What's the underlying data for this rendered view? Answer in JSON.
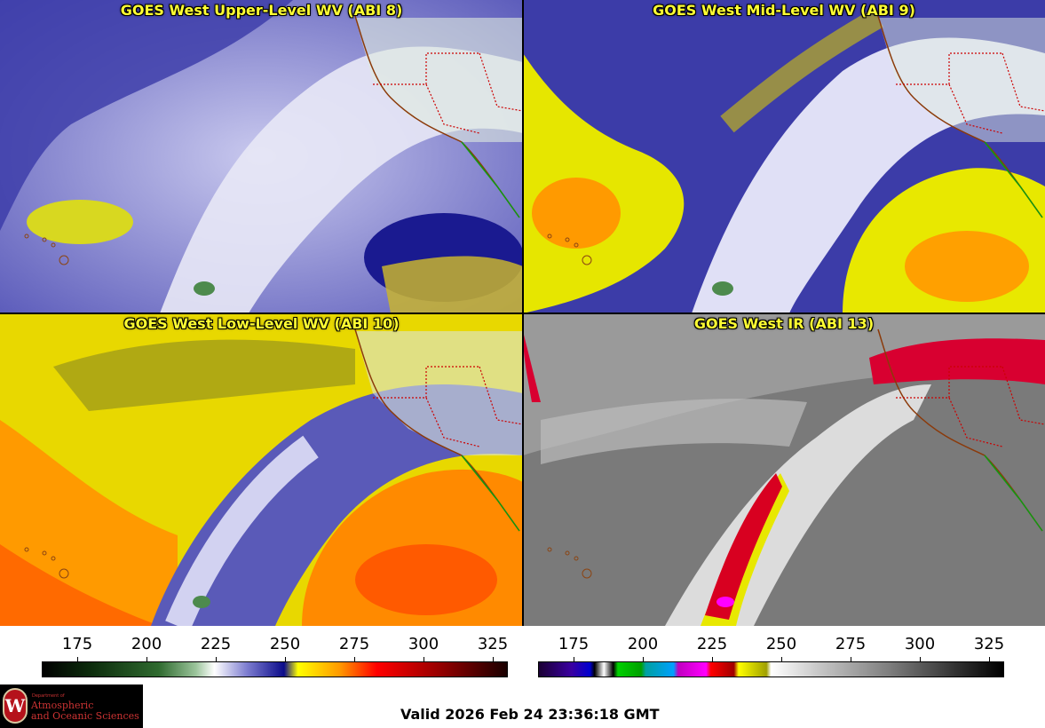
{
  "panels": {
    "upper_left": {
      "title": "GOES West Upper-Level WV (ABI 8)"
    },
    "upper_right": {
      "title": "GOES West Mid-Level WV (ABI 9)"
    },
    "lower_left": {
      "title": "GOES West Low-Level WV (ABI 10)"
    },
    "lower_right": {
      "title": "GOES West IR (ABI 13)"
    }
  },
  "scales": {
    "wv": {
      "ticks": [
        "175",
        "200",
        "225",
        "250",
        "275",
        "300",
        "325"
      ]
    },
    "ir": {
      "ticks": [
        "175",
        "200",
        "225",
        "250",
        "275",
        "300",
        "325"
      ]
    }
  },
  "logo": {
    "dept": "Department of",
    "name_line1": "Atmospheric",
    "name_line2": "and Oceanic Sciences",
    "seal_letter": "W"
  },
  "valid_time": "Valid 2026 Feb 24 23:36:18 GMT",
  "colors": {
    "title_text": "#ffff33",
    "borders": "#cc0000",
    "coast": "#8b3a0a"
  }
}
